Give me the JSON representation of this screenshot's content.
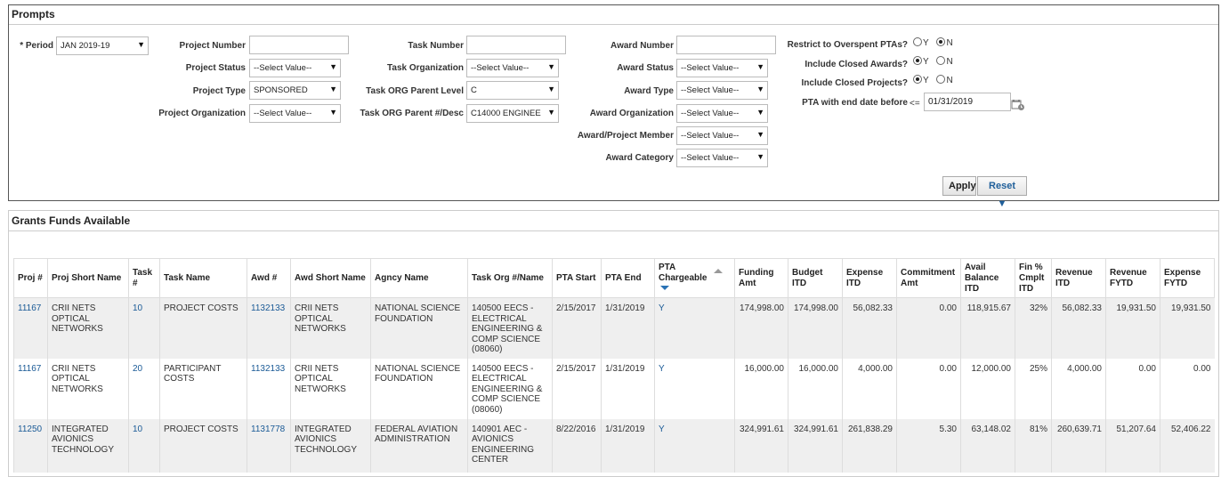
{
  "prompts": {
    "title": "Prompts",
    "period": {
      "label": "* Period",
      "value": "JAN 2019-19"
    },
    "project_number": {
      "label": "Project Number",
      "value": ""
    },
    "project_status": {
      "label": "Project Status",
      "value": "--Select Value--"
    },
    "project_type": {
      "label": "Project Type",
      "value": "SPONSORED"
    },
    "project_organization": {
      "label": "Project Organization",
      "value": "--Select Value--"
    },
    "task_number": {
      "label": "Task Number",
      "value": ""
    },
    "task_organization": {
      "label": "Task Organization",
      "value": "--Select Value--"
    },
    "task_org_parent_level": {
      "label": "Task ORG Parent Level",
      "value": "C"
    },
    "task_org_parent_desc": {
      "label": "Task ORG Parent #/Desc",
      "value": "C14000 ENGINEE"
    },
    "award_number": {
      "label": "Award Number",
      "value": ""
    },
    "award_status": {
      "label": "Award Status",
      "value": "--Select Value--"
    },
    "award_type": {
      "label": "Award Type",
      "value": "--Select Value--"
    },
    "award_organization": {
      "label": "Award Organization",
      "value": "--Select Value--"
    },
    "award_project_member": {
      "label": "Award/Project Member",
      "value": "--Select Value--"
    },
    "award_category": {
      "label": "Award Category",
      "value": "--Select Value--"
    },
    "restrict_overspent": {
      "label": "Restrict to Overspent PTAs?",
      "y": "Y",
      "n": "N",
      "selected": "N"
    },
    "include_closed_awards": {
      "label": "Include Closed Awards?",
      "y": "Y",
      "n": "N",
      "selected": "Y"
    },
    "include_closed_projects": {
      "label": "Include Closed Projects?",
      "y": "Y",
      "n": "N",
      "selected": "Y"
    },
    "pta_end_date": {
      "label": "PTA with end date before",
      "operator": "<=",
      "value": "01/31/2019"
    },
    "apply_label": "Apply",
    "reset_label": "Reset ▼"
  },
  "grants": {
    "title": "Grants Funds Available",
    "columns": [
      "Proj #",
      "Proj Short Name",
      "Task #",
      "Task Name",
      "Awd #",
      "Awd Short Name",
      "Agncy Name",
      "Task Org #/Name",
      "PTA Start",
      "PTA End",
      "PTA Chargeable",
      "Funding Amt",
      "Budget ITD",
      "Expense ITD",
      "Commitment Amt",
      "Avail Balance ITD",
      "Fin % Cmplt ITD",
      "Revenue ITD",
      "Revenue FYTD",
      "Expense FYTD"
    ],
    "rows": [
      [
        "11167",
        "CRII NETS OPTICAL NETWORKS",
        "10",
        "PROJECT COSTS",
        "1132133",
        "CRII NETS OPTICAL NETWORKS",
        "NATIONAL SCIENCE FOUNDATION",
        "140500 EECS - ELECTRICAL ENGINEERING & COMP SCIENCE (08060)",
        "2/15/2017",
        "1/31/2019",
        "Y",
        "174,998.00",
        "174,998.00",
        "56,082.33",
        "0.00",
        "118,915.67",
        "32%",
        "56,082.33",
        "19,931.50",
        "19,931.50"
      ],
      [
        "11167",
        "CRII NETS OPTICAL NETWORKS",
        "20",
        "PARTICIPANT COSTS",
        "1132133",
        "CRII NETS OPTICAL NETWORKS",
        "NATIONAL SCIENCE FOUNDATION",
        "140500 EECS - ELECTRICAL ENGINEERING & COMP SCIENCE (08060)",
        "2/15/2017",
        "1/31/2019",
        "Y",
        "16,000.00",
        "16,000.00",
        "4,000.00",
        "0.00",
        "12,000.00",
        "25%",
        "4,000.00",
        "0.00",
        "0.00"
      ],
      [
        "11250",
        "INTEGRATED AVIONICS TECHNOLOGY",
        "10",
        "PROJECT COSTS",
        "1131778",
        "INTEGRATED AVIONICS TECHNOLOGY",
        "FEDERAL AVIATION ADMINISTRATION",
        "140901 AEC - AVIONICS ENGINEERING CENTER",
        "8/22/2016",
        "1/31/2019",
        "Y",
        "324,991.61",
        "324,991.61",
        "261,838.29",
        "5.30",
        "63,148.02",
        "81%",
        "260,639.71",
        "51,207.64",
        "52,406.22"
      ]
    ]
  }
}
